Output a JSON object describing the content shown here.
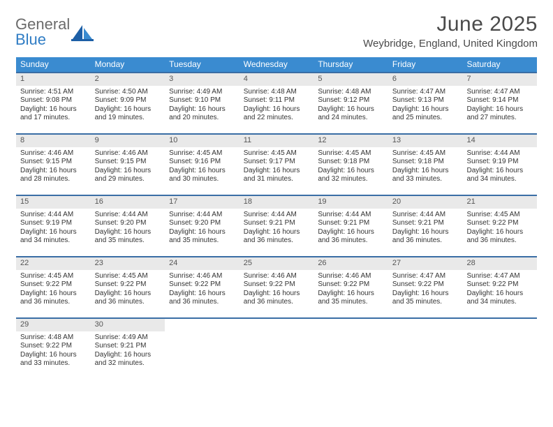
{
  "colors": {
    "header_bg": "#3a8bd0",
    "week_divider": "#3a6ea5",
    "daynum_bg": "#e9e9e9",
    "text": "#333333",
    "title_text": "#4a4a4a",
    "logo_gray": "#6b6b6b",
    "logo_blue": "#2f7cc4",
    "background": "#ffffff"
  },
  "typography": {
    "title_fontsize": 30,
    "subtitle_fontsize": 15,
    "dow_fontsize": 12,
    "daynum_fontsize": 11,
    "body_fontsize": 10
  },
  "logo": {
    "line1": "General",
    "line2": "Blue"
  },
  "title": {
    "month": "June 2025",
    "location": "Weybridge, England, United Kingdom"
  },
  "dow": [
    "Sunday",
    "Monday",
    "Tuesday",
    "Wednesday",
    "Thursday",
    "Friday",
    "Saturday"
  ],
  "weeks": [
    [
      {
        "n": "1",
        "l1": "Sunrise: 4:51 AM",
        "l2": "Sunset: 9:08 PM",
        "l3": "Daylight: 16 hours",
        "l4": "and 17 minutes."
      },
      {
        "n": "2",
        "l1": "Sunrise: 4:50 AM",
        "l2": "Sunset: 9:09 PM",
        "l3": "Daylight: 16 hours",
        "l4": "and 19 minutes."
      },
      {
        "n": "3",
        "l1": "Sunrise: 4:49 AM",
        "l2": "Sunset: 9:10 PM",
        "l3": "Daylight: 16 hours",
        "l4": "and 20 minutes."
      },
      {
        "n": "4",
        "l1": "Sunrise: 4:48 AM",
        "l2": "Sunset: 9:11 PM",
        "l3": "Daylight: 16 hours",
        "l4": "and 22 minutes."
      },
      {
        "n": "5",
        "l1": "Sunrise: 4:48 AM",
        "l2": "Sunset: 9:12 PM",
        "l3": "Daylight: 16 hours",
        "l4": "and 24 minutes."
      },
      {
        "n": "6",
        "l1": "Sunrise: 4:47 AM",
        "l2": "Sunset: 9:13 PM",
        "l3": "Daylight: 16 hours",
        "l4": "and 25 minutes."
      },
      {
        "n": "7",
        "l1": "Sunrise: 4:47 AM",
        "l2": "Sunset: 9:14 PM",
        "l3": "Daylight: 16 hours",
        "l4": "and 27 minutes."
      }
    ],
    [
      {
        "n": "8",
        "l1": "Sunrise: 4:46 AM",
        "l2": "Sunset: 9:15 PM",
        "l3": "Daylight: 16 hours",
        "l4": "and 28 minutes."
      },
      {
        "n": "9",
        "l1": "Sunrise: 4:46 AM",
        "l2": "Sunset: 9:15 PM",
        "l3": "Daylight: 16 hours",
        "l4": "and 29 minutes."
      },
      {
        "n": "10",
        "l1": "Sunrise: 4:45 AM",
        "l2": "Sunset: 9:16 PM",
        "l3": "Daylight: 16 hours",
        "l4": "and 30 minutes."
      },
      {
        "n": "11",
        "l1": "Sunrise: 4:45 AM",
        "l2": "Sunset: 9:17 PM",
        "l3": "Daylight: 16 hours",
        "l4": "and 31 minutes."
      },
      {
        "n": "12",
        "l1": "Sunrise: 4:45 AM",
        "l2": "Sunset: 9:18 PM",
        "l3": "Daylight: 16 hours",
        "l4": "and 32 minutes."
      },
      {
        "n": "13",
        "l1": "Sunrise: 4:45 AM",
        "l2": "Sunset: 9:18 PM",
        "l3": "Daylight: 16 hours",
        "l4": "and 33 minutes."
      },
      {
        "n": "14",
        "l1": "Sunrise: 4:44 AM",
        "l2": "Sunset: 9:19 PM",
        "l3": "Daylight: 16 hours",
        "l4": "and 34 minutes."
      }
    ],
    [
      {
        "n": "15",
        "l1": "Sunrise: 4:44 AM",
        "l2": "Sunset: 9:19 PM",
        "l3": "Daylight: 16 hours",
        "l4": "and 34 minutes."
      },
      {
        "n": "16",
        "l1": "Sunrise: 4:44 AM",
        "l2": "Sunset: 9:20 PM",
        "l3": "Daylight: 16 hours",
        "l4": "and 35 minutes."
      },
      {
        "n": "17",
        "l1": "Sunrise: 4:44 AM",
        "l2": "Sunset: 9:20 PM",
        "l3": "Daylight: 16 hours",
        "l4": "and 35 minutes."
      },
      {
        "n": "18",
        "l1": "Sunrise: 4:44 AM",
        "l2": "Sunset: 9:21 PM",
        "l3": "Daylight: 16 hours",
        "l4": "and 36 minutes."
      },
      {
        "n": "19",
        "l1": "Sunrise: 4:44 AM",
        "l2": "Sunset: 9:21 PM",
        "l3": "Daylight: 16 hours",
        "l4": "and 36 minutes."
      },
      {
        "n": "20",
        "l1": "Sunrise: 4:44 AM",
        "l2": "Sunset: 9:21 PM",
        "l3": "Daylight: 16 hours",
        "l4": "and 36 minutes."
      },
      {
        "n": "21",
        "l1": "Sunrise: 4:45 AM",
        "l2": "Sunset: 9:22 PM",
        "l3": "Daylight: 16 hours",
        "l4": "and 36 minutes."
      }
    ],
    [
      {
        "n": "22",
        "l1": "Sunrise: 4:45 AM",
        "l2": "Sunset: 9:22 PM",
        "l3": "Daylight: 16 hours",
        "l4": "and 36 minutes."
      },
      {
        "n": "23",
        "l1": "Sunrise: 4:45 AM",
        "l2": "Sunset: 9:22 PM",
        "l3": "Daylight: 16 hours",
        "l4": "and 36 minutes."
      },
      {
        "n": "24",
        "l1": "Sunrise: 4:46 AM",
        "l2": "Sunset: 9:22 PM",
        "l3": "Daylight: 16 hours",
        "l4": "and 36 minutes."
      },
      {
        "n": "25",
        "l1": "Sunrise: 4:46 AM",
        "l2": "Sunset: 9:22 PM",
        "l3": "Daylight: 16 hours",
        "l4": "and 36 minutes."
      },
      {
        "n": "26",
        "l1": "Sunrise: 4:46 AM",
        "l2": "Sunset: 9:22 PM",
        "l3": "Daylight: 16 hours",
        "l4": "and 35 minutes."
      },
      {
        "n": "27",
        "l1": "Sunrise: 4:47 AM",
        "l2": "Sunset: 9:22 PM",
        "l3": "Daylight: 16 hours",
        "l4": "and 35 minutes."
      },
      {
        "n": "28",
        "l1": "Sunrise: 4:47 AM",
        "l2": "Sunset: 9:22 PM",
        "l3": "Daylight: 16 hours",
        "l4": "and 34 minutes."
      }
    ],
    [
      {
        "n": "29",
        "l1": "Sunrise: 4:48 AM",
        "l2": "Sunset: 9:22 PM",
        "l3": "Daylight: 16 hours",
        "l4": "and 33 minutes."
      },
      {
        "n": "30",
        "l1": "Sunrise: 4:49 AM",
        "l2": "Sunset: 9:21 PM",
        "l3": "Daylight: 16 hours",
        "l4": "and 32 minutes."
      },
      null,
      null,
      null,
      null,
      null
    ]
  ]
}
